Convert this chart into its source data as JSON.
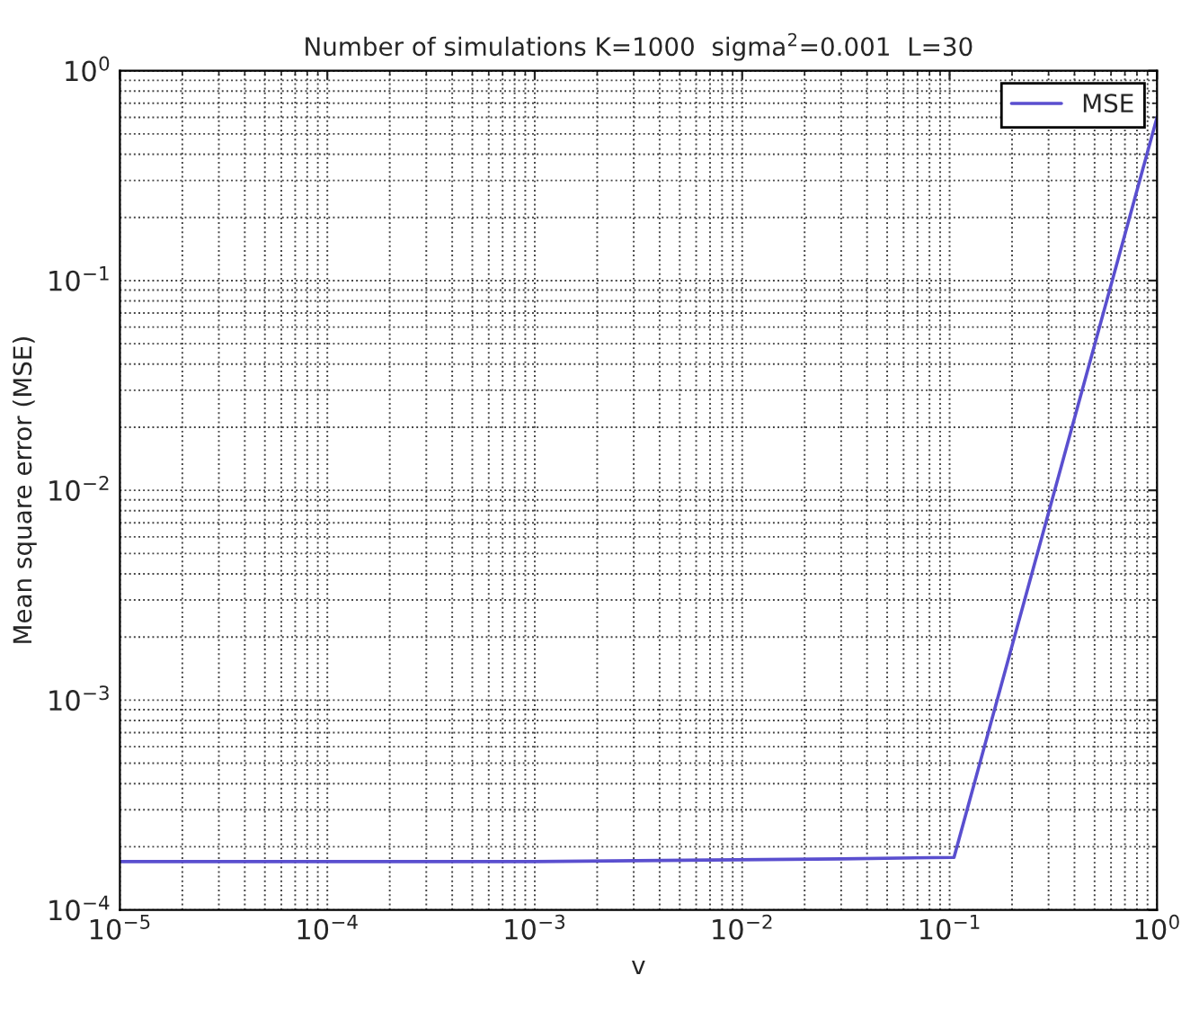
{
  "chart_data": {
    "type": "line",
    "title": "Number of simulations K=1000  sigma$^{2}$=0.001  L=30",
    "xlabel": "v",
    "ylabel": "Mean square error (MSE)",
    "log": "xy",
    "grid": true,
    "legend": "top right",
    "marker": "none",
    "line_style": "solid",
    "xlim": [
      1e-05,
      1
    ],
    "ylim": [
      0.0001,
      1
    ],
    "xticks": [
      {
        "value": 1e-05,
        "label": "10$^{−5}$"
      },
      {
        "value": 0.0001,
        "label": "10$^{−4}$"
      },
      {
        "value": 0.001,
        "label": "10$^{−3}$"
      },
      {
        "value": 0.01,
        "label": "10$^{−2}$"
      },
      {
        "value": 0.1,
        "label": "10$^{−1}$"
      },
      {
        "value": 1,
        "label": "10$^{0}$"
      }
    ],
    "yticks": [
      {
        "value": 0.0001,
        "label": "10$^{−4}$"
      },
      {
        "value": 0.001,
        "label": "10$^{−3}$"
      },
      {
        "value": 0.01,
        "label": "10$^{−2}$"
      },
      {
        "value": 0.1,
        "label": "10$^{−1}$"
      },
      {
        "value": 1,
        "label": "10$^{0}$"
      }
    ],
    "series": [
      {
        "name": "MSE",
        "color": "#5a4fcf",
        "x": [
          1e-05,
          0.001,
          0.03,
          0.105,
          1
        ],
        "values": [
          0.00017,
          0.00017,
          0.000175,
          0.000178,
          0.6
        ]
      }
    ]
  }
}
